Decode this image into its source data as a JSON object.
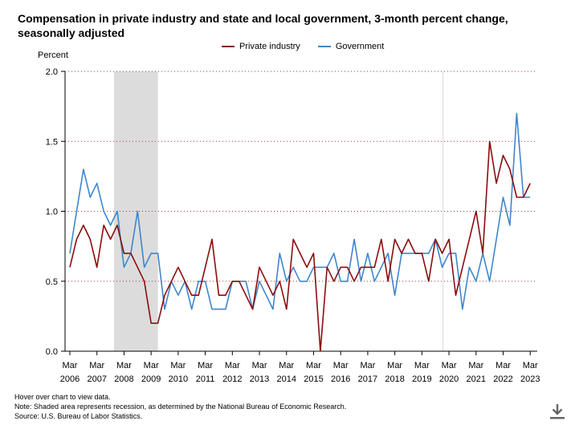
{
  "title_line1": "Compensation in private industry and state and local government, 3-month percent change,",
  "title_line2": "seasonally adjusted",
  "notes": {
    "hover": "Hover over chart to view data.",
    "shading": "Note: Shaded area represents recession, as determined by the National Bureau of Economic Research.",
    "source": "Source: U.S. Bureau of Labor Statistics."
  },
  "download_icon": "download-icon",
  "chart_data": {
    "type": "line",
    "ylabel": "Percent",
    "ylim": [
      0,
      2
    ],
    "yticks": [
      "0.0",
      "0.5",
      "1.0",
      "1.5",
      "2.0"
    ],
    "xticks": [
      {
        "month": "Mar",
        "year": "2006"
      },
      {
        "month": "Mar",
        "year": "2007"
      },
      {
        "month": "Mar",
        "year": "2008"
      },
      {
        "month": "Mar",
        "year": "2009"
      },
      {
        "month": "Mar",
        "year": "2010"
      },
      {
        "month": "Mar",
        "year": "2011"
      },
      {
        "month": "Mar",
        "year": "2012"
      },
      {
        "month": "Mar",
        "year": "2013"
      },
      {
        "month": "Mar",
        "year": "2014"
      },
      {
        "month": "Mar",
        "year": "2015"
      },
      {
        "month": "Mar",
        "year": "2016"
      },
      {
        "month": "Mar",
        "year": "2017"
      },
      {
        "month": "Mar",
        "year": "2018"
      },
      {
        "month": "Mar",
        "year": "2019"
      },
      {
        "month": "Mar",
        "year": "2020"
      },
      {
        "month": "Mar",
        "year": "2021"
      },
      {
        "month": "Mar",
        "year": "2022"
      },
      {
        "month": "Mar",
        "year": "2023"
      }
    ],
    "recession": [
      "Dec 2007",
      "Jun 2009"
    ],
    "grid": "horizontal dotted",
    "legend_position": "top-center",
    "x": [
      "Mar 2006",
      "Jun 2006",
      "Sep 2006",
      "Dec 2006",
      "Mar 2007",
      "Jun 2007",
      "Sep 2007",
      "Dec 2007",
      "Mar 2008",
      "Jun 2008",
      "Sep 2008",
      "Dec 2008",
      "Mar 2009",
      "Jun 2009",
      "Sep 2009",
      "Dec 2009",
      "Mar 2010",
      "Jun 2010",
      "Sep 2010",
      "Dec 2010",
      "Mar 2011",
      "Jun 2011",
      "Sep 2011",
      "Dec 2011",
      "Mar 2012",
      "Jun 2012",
      "Sep 2012",
      "Dec 2012",
      "Mar 2013",
      "Jun 2013",
      "Sep 2013",
      "Dec 2013",
      "Mar 2014",
      "Jun 2014",
      "Sep 2014",
      "Dec 2014",
      "Mar 2015",
      "Jun 2015",
      "Sep 2015",
      "Dec 2015",
      "Mar 2016",
      "Jun 2016",
      "Sep 2016",
      "Dec 2016",
      "Mar 2017",
      "Jun 2017",
      "Sep 2017",
      "Dec 2017",
      "Mar 2018",
      "Jun 2018",
      "Sep 2018",
      "Dec 2018",
      "Mar 2019",
      "Jun 2019",
      "Sep 2019",
      "Dec 2019",
      "Mar 2020",
      "Jun 2020",
      "Sep 2020",
      "Dec 2020",
      "Mar 2021",
      "Jun 2021",
      "Sep 2021",
      "Dec 2021",
      "Mar 2022",
      "Jun 2022",
      "Sep 2022",
      "Dec 2022",
      "Mar 2023"
    ],
    "series": [
      {
        "name": "Private industry",
        "color": "#8b0d0d",
        "values": [
          0.6,
          0.8,
          0.9,
          0.8,
          0.6,
          0.9,
          0.8,
          0.9,
          0.7,
          0.7,
          0.6,
          0.5,
          0.2,
          0.2,
          0.4,
          0.5,
          0.6,
          0.5,
          0.4,
          0.4,
          0.6,
          0.8,
          0.4,
          0.4,
          0.5,
          0.5,
          0.4,
          0.3,
          0.6,
          0.5,
          0.4,
          0.5,
          0.3,
          0.8,
          0.7,
          0.6,
          0.7,
          0.0,
          0.6,
          0.5,
          0.6,
          0.6,
          0.5,
          0.6,
          0.6,
          0.6,
          0.8,
          0.5,
          0.8,
          0.7,
          0.8,
          0.7,
          0.7,
          0.5,
          0.8,
          0.7,
          0.8,
          0.4,
          0.6,
          0.8,
          1.0,
          0.7,
          1.5,
          1.2,
          1.4,
          1.3,
          1.1,
          1.1,
          1.2
        ]
      },
      {
        "name": "Government",
        "color": "#3f86cd",
        "values": [
          0.7,
          1.0,
          1.3,
          1.1,
          1.2,
          1.0,
          0.9,
          1.0,
          0.6,
          0.7,
          1.0,
          0.6,
          0.7,
          0.7,
          0.3,
          0.5,
          0.4,
          0.5,
          0.3,
          0.5,
          0.5,
          0.3,
          0.3,
          0.3,
          0.5,
          0.5,
          0.5,
          0.3,
          0.5,
          0.4,
          0.3,
          0.7,
          0.5,
          0.6,
          0.5,
          0.5,
          0.6,
          0.6,
          0.6,
          0.7,
          0.5,
          0.5,
          0.8,
          0.5,
          0.7,
          0.5,
          0.6,
          0.7,
          0.4,
          0.7,
          0.7,
          0.7,
          0.7,
          0.7,
          0.8,
          0.6,
          0.7,
          0.7,
          0.3,
          0.6,
          0.5,
          0.7,
          0.5,
          0.8,
          1.1,
          0.9,
          1.7,
          1.1,
          1.1
        ]
      }
    ]
  }
}
